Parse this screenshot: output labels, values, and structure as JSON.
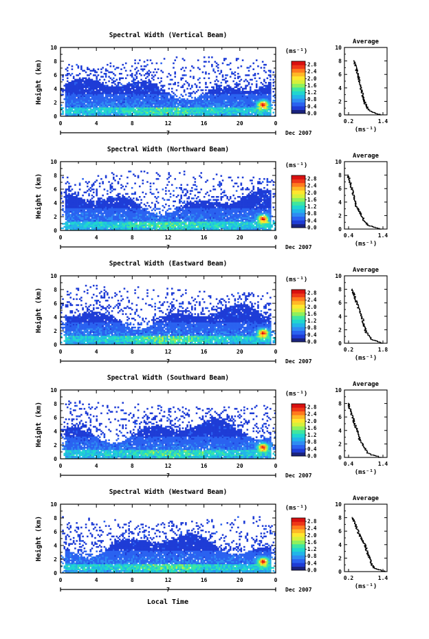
{
  "chart_data": {
    "type": "heatmap",
    "figure_xlabel": "Local Time",
    "panels": [
      {
        "title": "Spectral Width (Vertical Beam)",
        "avg_xticks": [
          "0.2",
          "1.4"
        ],
        "profile": [
          0.62,
          0.6,
          0.56,
          0.52,
          0.48,
          0.46,
          0.44,
          0.42,
          0.4,
          0.39,
          0.38,
          0.36,
          0.34,
          0.32,
          0.3,
          0.28,
          0.26,
          0.24,
          0.22
        ]
      },
      {
        "title": "Spectral Width (Northward Beam)",
        "avg_xticks": [
          "0.4",
          "1.4"
        ],
        "profile": [
          0.62,
          0.58,
          0.52,
          0.46,
          0.42,
          0.38,
          0.34,
          0.3,
          0.27,
          0.25,
          0.23,
          0.21,
          0.2,
          0.18,
          0.16,
          0.14,
          0.12,
          0.1,
          0.08
        ]
      },
      {
        "title": "Spectral Width (Eastward Beam)",
        "avg_xticks": [
          "0.2",
          "1.8"
        ],
        "profile": [
          0.66,
          0.64,
          0.6,
          0.55,
          0.5,
          0.48,
          0.46,
          0.44,
          0.43,
          0.4,
          0.38,
          0.35,
          0.32,
          0.3,
          0.27,
          0.25,
          0.23,
          0.2,
          0.18
        ]
      },
      {
        "title": "Spectral Width (Southward Beam)",
        "avg_xticks": [
          "0.4",
          "1.4"
        ],
        "profile": [
          0.62,
          0.58,
          0.52,
          0.48,
          0.44,
          0.4,
          0.36,
          0.33,
          0.32,
          0.3,
          0.27,
          0.24,
          0.22,
          0.2,
          0.17,
          0.15,
          0.13,
          0.11,
          0.09
        ]
      },
      {
        "title": "Spectral Width (Westward Beam)",
        "avg_xticks": [
          "0.2",
          "1.4"
        ],
        "profile": [
          0.72,
          0.7,
          0.66,
          0.62,
          0.6,
          0.57,
          0.55,
          0.52,
          0.5,
          0.48,
          0.44,
          0.4,
          0.36,
          0.33,
          0.3,
          0.27,
          0.24,
          0.21,
          0.18
        ]
      }
    ],
    "ylabel": "Height (km)",
    "yticks": [
      "0",
      "2",
      "4",
      "6",
      "8",
      "10"
    ],
    "xticks": [
      "0",
      "4",
      "8",
      "12",
      "16",
      "20",
      "0"
    ],
    "x_range": [
      0,
      24
    ],
    "y_range": [
      0,
      10
    ],
    "day_label": "7",
    "date_label": "Dec 2007",
    "colorbar": {
      "unit": "(ms⁻¹)",
      "ticks": [
        "0.0",
        "0.4",
        "0.8",
        "1.2",
        "1.6",
        "2.0",
        "2.4",
        "2.8"
      ],
      "range": [
        0,
        3.0
      ],
      "colors": [
        "#1a237e",
        "#1e3cd6",
        "#2a62f0",
        "#2f8cf2",
        "#22b5e8",
        "#20d6cf",
        "#3fe6a0",
        "#8ef05c",
        "#d6f03a",
        "#ffe62e",
        "#ffb826",
        "#ff7a1e",
        "#ee3818",
        "#d81010"
      ]
    },
    "average": {
      "title": "Average",
      "xlabel": "(ms⁻¹)",
      "yticks": [
        "0",
        "2",
        "4",
        "6",
        "8",
        "10"
      ]
    }
  }
}
